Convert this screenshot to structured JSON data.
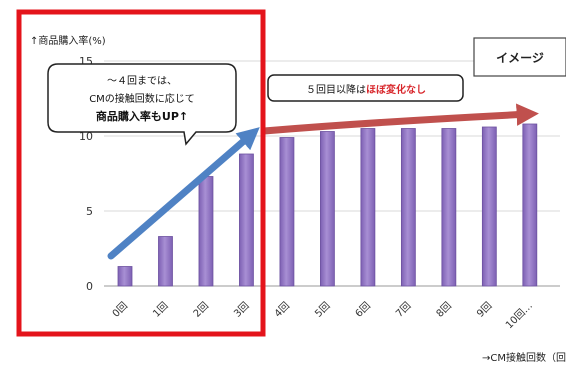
{
  "chart_data": {
    "type": "bar",
    "ylabel": "↑商品購入率(%)",
    "xlabel": "→CM接触回数（回",
    "categories": [
      "0回",
      "1回",
      "2回",
      "3回",
      "4回",
      "5回",
      "6回",
      "7回",
      "8回",
      "9回",
      "10回…"
    ],
    "values": [
      1.3,
      3.3,
      7.3,
      8.8,
      9.9,
      10.3,
      10.5,
      10.5,
      10.5,
      10.6,
      10.8
    ],
    "ylim": [
      0,
      15
    ],
    "yticks": [
      0,
      5,
      10,
      15
    ],
    "grid": true,
    "bar_color": "#9b7fc6",
    "bar_edge_color": "#6d52a0"
  },
  "badge": {
    "label": "イメージ"
  },
  "callout_left": {
    "line1": "～４回までは、",
    "line2": "CMの接触回数に応じて",
    "line3": "商品購入率もUP↑",
    "emphasis_color": "#1f6fc4"
  },
  "callout_right": {
    "prefix": "５回目以降は",
    "emphasis": "ほぼ変化なし",
    "emphasis_color": "#d8262b"
  },
  "colors": {
    "highlight_frame": "#e4141b",
    "rising_arrow": "#4f82c4",
    "flat_arrow": "#c0504d",
    "grid": "#d9d9d9"
  }
}
